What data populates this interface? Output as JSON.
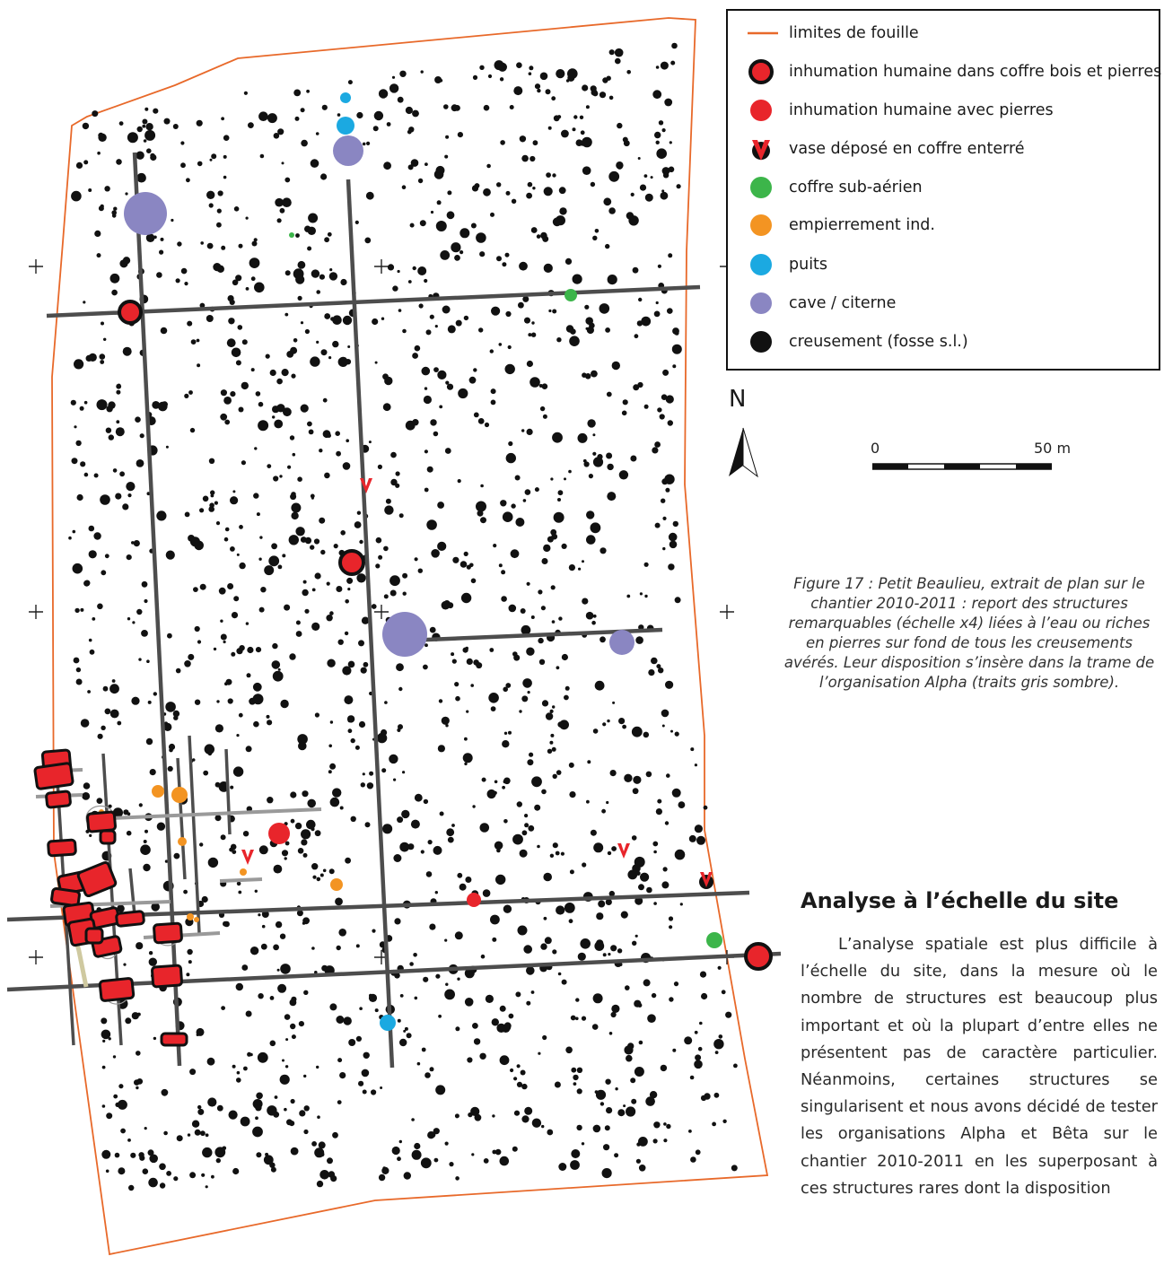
{
  "legend": {
    "items": [
      {
        "key": "limits",
        "label": "limites de fouille",
        "color": "#e8692a"
      },
      {
        "key": "coffre_bois",
        "label": "inhumation humaine dans coffre bois et pierres",
        "color": "#e8252b"
      },
      {
        "key": "inhumation",
        "label": "inhumation humaine avec pierres",
        "color": "#e8252b"
      },
      {
        "key": "vase",
        "label": "vase déposé en coffre enterré",
        "color": "#e8252b"
      },
      {
        "key": "coffre_sub",
        "label": "coffre sub-aérien",
        "color": "#3cb54a"
      },
      {
        "key": "empierrement",
        "label": "empierrement ind.",
        "color": "#f39422"
      },
      {
        "key": "puits",
        "label": "puits",
        "color": "#1ba9e1"
      },
      {
        "key": "cave",
        "label": "cave / citerne",
        "color": "#8a86c2"
      },
      {
        "key": "creusement",
        "label": "creusement (fosse s.l.)",
        "color": "#111111"
      }
    ]
  },
  "north": {
    "letter": "N"
  },
  "scale": {
    "start": "0",
    "end": "50 m"
  },
  "caption": "Figure 17 : Petit Beaulieu, extrait de plan sur le chantier 2010-2011 : report des structures remarquables (échelle x4) liées à l’eau ou riches en pierres sur fond de tous les creusements avérés. Leur disposition s’insère dans la trame de l’organisation Alpha (traits gris sombre).",
  "section": {
    "heading": "Analyse à l’échelle du site",
    "paragraph": "L’analyse spatiale est plus difficile à l’échelle du site, dans la mesure où le nombre de structures est beaucoup plus important et où la plupart d’entre elles ne présentent pas de caractère particulier. Néanmoins, certaines structures se singularisent et nous avons décidé de tester les organisations Alpha et Bêta sur le chantier 2010-2011 en les superposant à ces structures rares dont la disposition"
  },
  "colors": {
    "limits": "#e8692a",
    "red": "#e8252b",
    "green": "#3cb54a",
    "orange": "#f39422",
    "blue": "#1ba9e1",
    "purple": "#8a86c2",
    "black": "#111111",
    "grid": "#4d4d4d",
    "grid_light": "#9a9a9a"
  }
}
